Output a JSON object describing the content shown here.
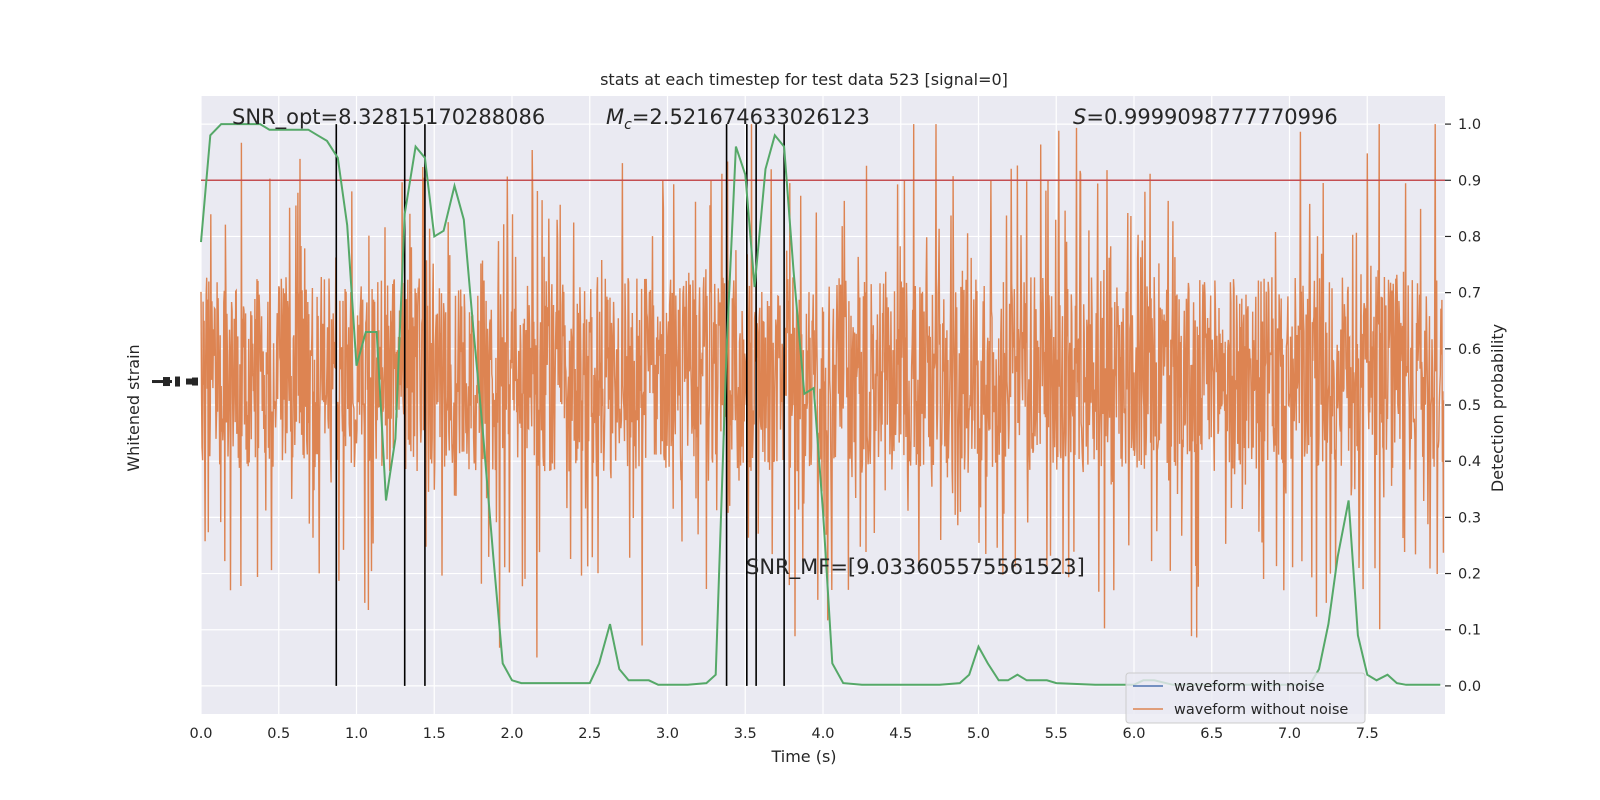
{
  "chart_data": {
    "type": "line",
    "title": "stats at each timestep for test data 523 [signal=0]",
    "xlabel": "Time (s)",
    "ylabel_left": "Whitened strain",
    "ylabel_right": "Detection probability",
    "xlim": [
      0.0,
      8.0
    ],
    "ylim_right": [
      -0.05,
      1.05
    ],
    "x_ticks": [
      "0.0",
      "0.5",
      "1.0",
      "1.5",
      "2.0",
      "2.5",
      "3.0",
      "3.5",
      "4.0",
      "4.5",
      "5.0",
      "5.5",
      "6.0",
      "6.5",
      "7.0",
      "7.5"
    ],
    "y_ticks_right": [
      "0.0",
      "0.1",
      "0.2",
      "0.3",
      "0.4",
      "0.5",
      "0.6",
      "0.7",
      "0.8",
      "0.9",
      "1.0"
    ],
    "threshold": 0.9,
    "colors": {
      "background": "#eaeaf2",
      "grid": "#ffffff",
      "waveform_with_noise": "#4c72b0",
      "waveform_without_noise": "#dd8452",
      "probability": "#55a868",
      "threshold": "#c44e52",
      "event_lines": "#000000"
    },
    "legend": {
      "position": "lower-right",
      "entries": [
        {
          "label": "waveform with noise",
          "color": "#4c72b0"
        },
        {
          "label": "waveform without noise",
          "color": "#dd8452"
        }
      ]
    },
    "annotations": {
      "snr_opt": "SNR_opt=8.32815170288086",
      "mc_symbol": "M",
      "mc_subscript": "c",
      "mc_value": "=2.521674633026123",
      "s_symbol": "S",
      "s_value": "=0.9999098777770996",
      "snr_mf": "SNR_MF=[9.033605575561523]"
    },
    "event_times": [
      0.87,
      1.31,
      1.44,
      3.38,
      3.51,
      3.57,
      3.75
    ],
    "series": [
      {
        "name": "Detection probability",
        "x": [
          0.0,
          0.06,
          0.13,
          0.19,
          0.25,
          0.31,
          0.38,
          0.44,
          0.5,
          0.56,
          0.63,
          0.69,
          0.75,
          0.81,
          0.88,
          0.94,
          1.0,
          1.06,
          1.13,
          1.19,
          1.25,
          1.31,
          1.38,
          1.44,
          1.5,
          1.56,
          1.63,
          1.69,
          1.75,
          1.81,
          1.88,
          1.94,
          2.0,
          2.06,
          2.13,
          2.25,
          2.38,
          2.5,
          2.56,
          2.63,
          2.69,
          2.75,
          2.88,
          2.94,
          3.0,
          3.13,
          3.25,
          3.31,
          3.38,
          3.44,
          3.5,
          3.56,
          3.63,
          3.69,
          3.75,
          3.81,
          3.88,
          3.94,
          4.0,
          4.06,
          4.13,
          4.25,
          4.5,
          4.75,
          4.88,
          4.94,
          5.0,
          5.06,
          5.13,
          5.19,
          5.25,
          5.31,
          5.44,
          5.5,
          5.75,
          6.0,
          6.06,
          6.13,
          6.25,
          6.5,
          6.75,
          7.0,
          7.13,
          7.19,
          7.25,
          7.31,
          7.38,
          7.44,
          7.5,
          7.56,
          7.63,
          7.69,
          7.75,
          7.88,
          7.97
        ],
        "y": [
          0.79,
          0.98,
          1.0,
          1.0,
          1.0,
          1.0,
          1.0,
          0.99,
          0.99,
          0.99,
          0.99,
          0.99,
          0.98,
          0.97,
          0.94,
          0.82,
          0.57,
          0.63,
          0.63,
          0.33,
          0.44,
          0.84,
          0.96,
          0.94,
          0.8,
          0.81,
          0.89,
          0.83,
          0.64,
          0.46,
          0.23,
          0.04,
          0.01,
          0.005,
          0.005,
          0.005,
          0.005,
          0.005,
          0.04,
          0.11,
          0.03,
          0.01,
          0.01,
          0.002,
          0.002,
          0.002,
          0.005,
          0.02,
          0.6,
          0.96,
          0.91,
          0.71,
          0.92,
          0.98,
          0.96,
          0.74,
          0.52,
          0.53,
          0.31,
          0.04,
          0.005,
          0.002,
          0.002,
          0.002,
          0.005,
          0.02,
          0.07,
          0.04,
          0.01,
          0.01,
          0.02,
          0.01,
          0.01,
          0.005,
          0.002,
          0.002,
          0.01,
          0.01,
          0.002,
          0.002,
          0.002,
          0.002,
          0.002,
          0.03,
          0.11,
          0.23,
          0.33,
          0.09,
          0.02,
          0.01,
          0.02,
          0.005,
          0.002,
          0.002,
          0.002
        ]
      }
    ],
    "noise_band": {
      "x_start": 0.0,
      "x_end": 8.0,
      "core_range": [
        0.39,
        0.72
      ],
      "spike_range": [
        0.0,
        1.0
      ]
    }
  }
}
